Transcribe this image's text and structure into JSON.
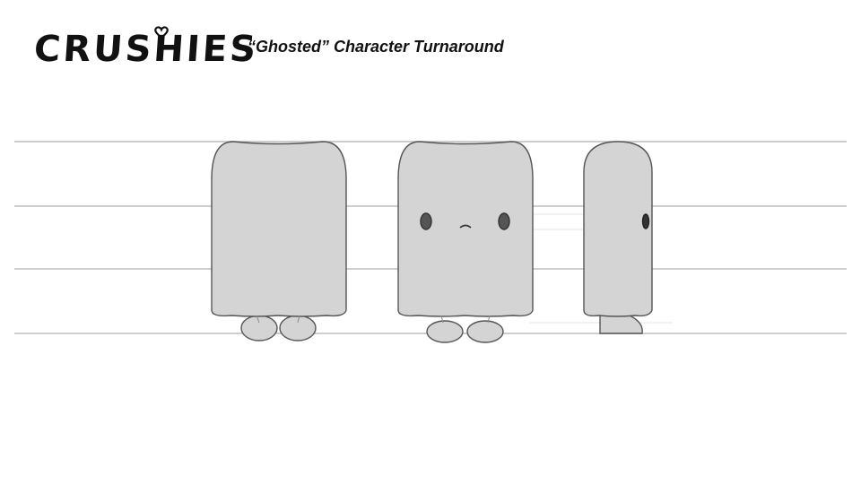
{
  "header": {
    "logo_text": "CRUSHIES",
    "subtitle": "“Ghosted” Character Turnaround"
  },
  "colors": {
    "body_fill": "#d4d4d4",
    "outline": "#555555",
    "guide_line": "#bdbdbd",
    "eye": "#555555"
  },
  "views": [
    {
      "id": "back"
    },
    {
      "id": "front"
    },
    {
      "id": "side"
    }
  ]
}
